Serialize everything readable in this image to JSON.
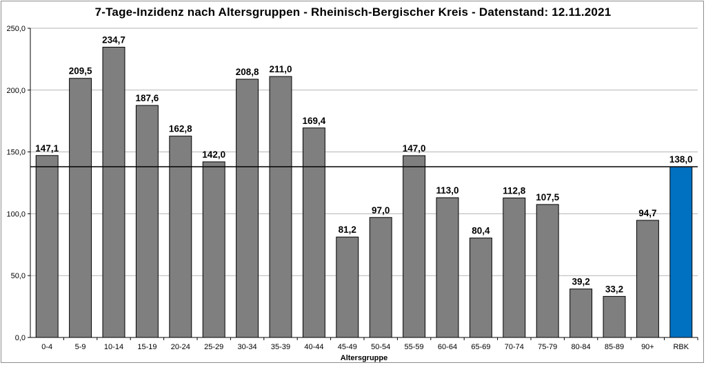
{
  "chart_data": {
    "type": "bar",
    "title": "7-Tage-Inzidenz nach Altersgruppen - Rheinisch-Bergischer Kreis - Datenstand: 12.11.2021",
    "xlabel": "Altersgruppe",
    "ylabel": "",
    "ylim": [
      0,
      250
    ],
    "yticks": [
      "0,0",
      "50,0",
      "100,0",
      "150,0",
      "200,0",
      "250,0"
    ],
    "grid": true,
    "categories": [
      "0-4",
      "5-9",
      "10-14",
      "15-19",
      "20-24",
      "25-29",
      "30-34",
      "35-39",
      "40-44",
      "45-49",
      "50-54",
      "55-59",
      "60-64",
      "65-69",
      "70-74",
      "75-79",
      "80-84",
      "85-89",
      "90+",
      "RBK"
    ],
    "values": [
      147.1,
      209.5,
      234.7,
      187.6,
      162.8,
      142.0,
      208.8,
      211.0,
      169.4,
      81.2,
      97.0,
      147.0,
      113.0,
      80.4,
      112.8,
      107.5,
      39.2,
      33.2,
      94.7,
      138.0
    ],
    "value_labels": [
      "147,1",
      "209,5",
      "234,7",
      "187,6",
      "162,8",
      "142,0",
      "208,8",
      "211,0",
      "169,4",
      "81,2",
      "97,0",
      "147,0",
      "113,0",
      "80,4",
      "112,8",
      "107,5",
      "39,2",
      "33,2",
      "94,7",
      "138,0"
    ],
    "reference_line": 138.0,
    "colors": {
      "bar": "#7f7f7f",
      "highlight": "#0070c0",
      "grid": "#b3b3b3",
      "reference": "#000000"
    },
    "highlight_category": "RBK"
  }
}
